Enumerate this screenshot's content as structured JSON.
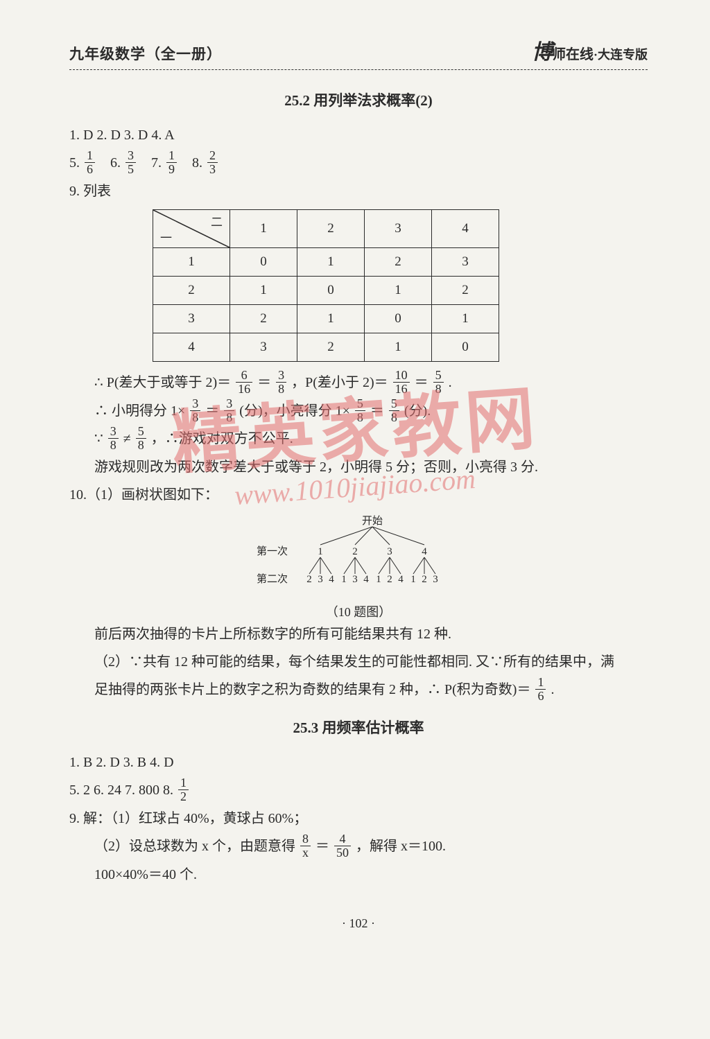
{
  "header": {
    "left": "九年级数学（全一册）",
    "brand": "博",
    "brand_rest": "师在线",
    "edition": "·大连专版"
  },
  "watermark": {
    "main": "精英家教网",
    "url": "www.1010jiajiao.com"
  },
  "section1": {
    "title": "25.2  用列举法求概率(2)",
    "answers_line1": "1. D   2. D   3. D   4. A",
    "answers_line2_parts": {
      "p5": "5.",
      "f5n": "1",
      "f5d": "6",
      "p6": "6.",
      "f6n": "3",
      "f6d": "5",
      "p7": "7.",
      "f7n": "1",
      "f7d": "9",
      "p8": "8.",
      "f8n": "2",
      "f8d": "3"
    },
    "q9_label": "9. 列表",
    "table": {
      "diag_top": "二",
      "diag_bot": "一",
      "cols": [
        "1",
        "2",
        "3",
        "4"
      ],
      "rows": [
        {
          "h": "1",
          "cells": [
            "0",
            "1",
            "2",
            "3"
          ]
        },
        {
          "h": "2",
          "cells": [
            "1",
            "0",
            "1",
            "2"
          ]
        },
        {
          "h": "3",
          "cells": [
            "2",
            "1",
            "0",
            "1"
          ]
        },
        {
          "h": "4",
          "cells": [
            "3",
            "2",
            "1",
            "0"
          ]
        }
      ]
    },
    "q9_expl": {
      "l1a": "∴ P(差大于或等于 2)＝",
      "l1f1n": "6",
      "l1f1d": "16",
      "l1eq1": "＝",
      "l1f2n": "3",
      "l1f2d": "8",
      "l1b": "，P(差小于 2)＝",
      "l1f3n": "10",
      "l1f3d": "16",
      "l1eq2": "＝",
      "l1f4n": "5",
      "l1f4d": "8",
      "l1end": ".",
      "l2a": "∴ 小明得分 1×",
      "l2f1n": "3",
      "l2f1d": "8",
      "l2eq1": "＝",
      "l2f2n": "3",
      "l2f2d": "8",
      "l2b": "(分)，小亮得分 1×",
      "l2f3n": "5",
      "l2f3d": "8",
      "l2eq2": "＝",
      "l2f4n": "5",
      "l2f4d": "8",
      "l2end": "(分).",
      "l3a": "∵",
      "l3f1n": "3",
      "l3f1d": "8",
      "l3ne": "≠",
      "l3f2n": "5",
      "l3f2d": "8",
      "l3b": "，∴游戏对双方不公平.",
      "l4": "游戏规则改为两次数字差大于或等于 2，小明得 5 分；否则，小亮得 3 分."
    },
    "q10_label": "10.（1）画树状图如下：",
    "tree": {
      "start": "开始",
      "row1_label": "第一次",
      "row2_label": "第二次",
      "row1": [
        "1",
        "2",
        "3",
        "4"
      ],
      "row2": [
        [
          "2",
          "3",
          "4"
        ],
        [
          "1",
          "3",
          "4"
        ],
        [
          "1",
          "2",
          "4"
        ],
        [
          "1",
          "2",
          "3"
        ]
      ],
      "caption": "（10 题图）"
    },
    "q10_text1": "前后两次抽得的卡片上所标数字的所有可能结果共有 12 种.",
    "q10_text2a": "（2）∵共有 12 种可能的结果，每个结果发生的可能性都相同. 又∵所有的结果中，满",
    "q10_text2b_pre": "足抽得的两张卡片上的数字之积为奇数的结果有 2 种，∴ P(积为奇数)＝",
    "q10_text2b_fn": "1",
    "q10_text2b_fd": "6",
    "q10_text2b_end": "."
  },
  "section2": {
    "title": "25.3  用频率估计概率",
    "answers_line1": "1. B   2. D   3. B   4. D",
    "answers_line2": {
      "p5": "5. 2   6. 24   7. 800   8.",
      "fn": "1",
      "fd": "2"
    },
    "q9_l1": "9. 解：（1）红球占 40%，黄球占 60%；",
    "q9_l2a": "（2）设总球数为 x 个，由题意得",
    "q9_l2_f1n": "8",
    "q9_l2_f1d": "x",
    "q9_l2_eq": "＝",
    "q9_l2_f2n": "4",
    "q9_l2_f2d": "50",
    "q9_l2b": "，解得 x＝100.",
    "q9_l3": "100×40%＝40 个."
  },
  "page_number": "· 102 ·",
  "colors": {
    "text": "#2a2a2a",
    "bg": "#f4f3ee",
    "border": "#2a2a2a",
    "watermark": "#e36f6f"
  }
}
